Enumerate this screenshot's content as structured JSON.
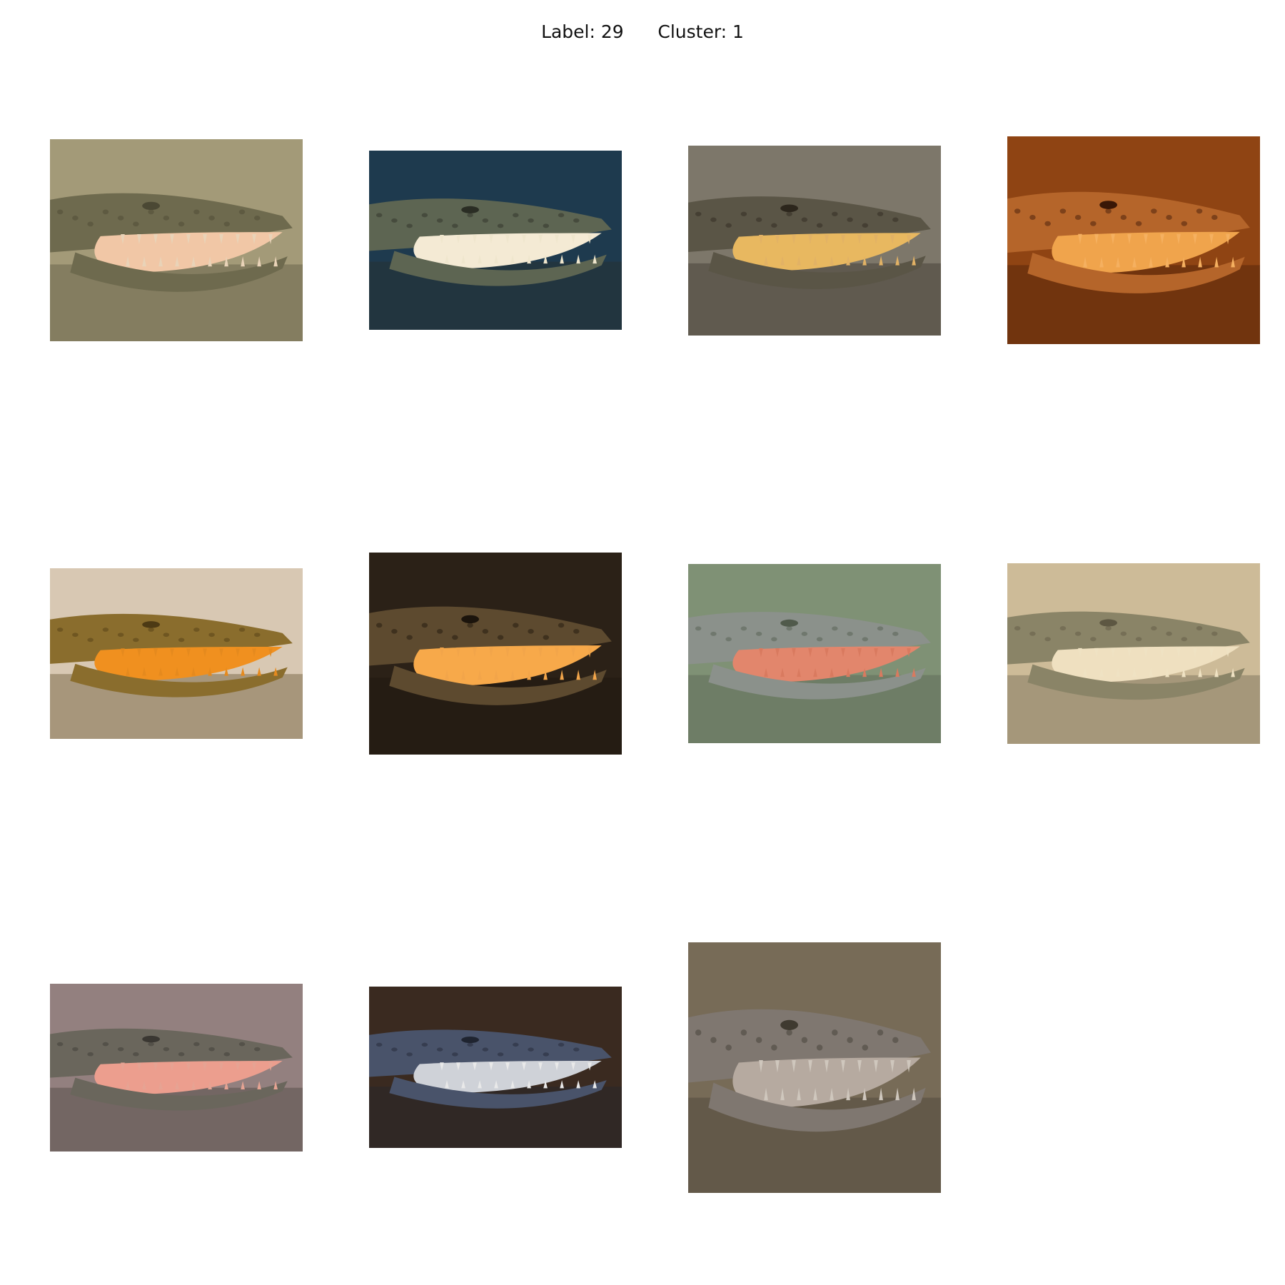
{
  "title": "Label: 29      Cluster: 1",
  "images": [
    {
      "name": "crocodile-photo-1",
      "bg": "#a39a78",
      "mid": "#6e6a4e",
      "accent": "#e9d3b8",
      "dark": "#4b4834",
      "mouth": "#f1c7a6"
    },
    {
      "name": "crocodile-photo-2",
      "bg": "#1e3a4e",
      "mid": "#5d6552",
      "accent": "#efe6cd",
      "dark": "#2a2d24",
      "mouth": "#f4ead4"
    },
    {
      "name": "crocodile-photo-3",
      "bg": "#7d776a",
      "mid": "#5a5546",
      "accent": "#e2b265",
      "dark": "#2c261c",
      "mouth": "#e8b860"
    },
    {
      "name": "crocodile-photo-4",
      "bg": "#8f4413",
      "mid": "#b5652a",
      "accent": "#f5b060",
      "dark": "#3a1706",
      "mouth": "#f0a44c"
    },
    {
      "name": "crocodile-photo-5",
      "bg": "#d8c8b3",
      "mid": "#8a6d2d",
      "accent": "#e58a1e",
      "dark": "#4d3a14",
      "mouth": "#f0901f"
    },
    {
      "name": "crocodile-photo-6",
      "bg": "#2b2117",
      "mid": "#5d4a2f",
      "accent": "#f2a54a",
      "dark": "#1b140c",
      "mouth": "#f7a94a"
    },
    {
      "name": "crocodile-photo-7",
      "bg": "#7f9175",
      "mid": "#8b918b",
      "accent": "#d97a5f",
      "dark": "#505a4b",
      "mouth": "#e2866c"
    },
    {
      "name": "crocodile-photo-8",
      "bg": "#cdbb98",
      "mid": "#8a8467",
      "accent": "#efe2c3",
      "dark": "#5d5742",
      "mouth": "#efe0c0"
    },
    {
      "name": "crocodile-photo-9",
      "bg": "#93807f",
      "mid": "#6a665c",
      "accent": "#e6a393",
      "dark": "#3a3732",
      "mouth": "#ec9e8e"
    },
    {
      "name": "crocodile-photo-10",
      "bg": "#3a2a20",
      "mid": "#49536a",
      "accent": "#e9e9e9",
      "dark": "#1f2430",
      "mouth": "#cfd2d8"
    },
    {
      "name": "crocodile-photo-11",
      "bg": "#776b57",
      "mid": "#7f7770",
      "accent": "#cfc7bd",
      "dark": "#3f3a30",
      "mouth": "#b6aaa0"
    }
  ]
}
